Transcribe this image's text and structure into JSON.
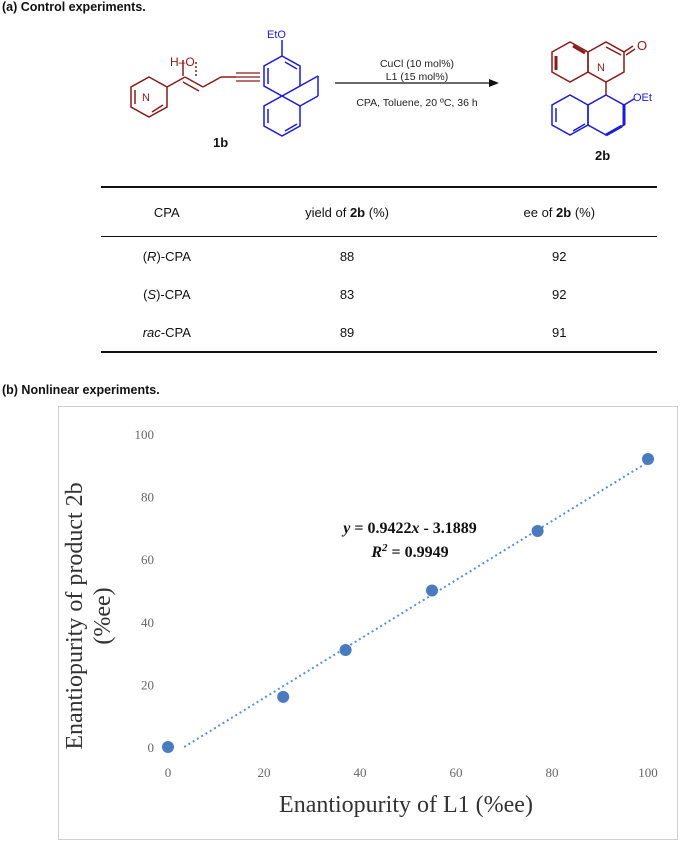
{
  "section_a": {
    "title": "(a) Control experiments.",
    "scheme": {
      "reactant_label": "1b",
      "product_label": "2b",
      "reactant_groups": {
        "hydroxyl": "H–O",
        "ethoxy": "EtO",
        "nitrogen": "N"
      },
      "product_groups": {
        "carbonyl": "O",
        "ethoxy": "OEt",
        "nitrogen": "N"
      },
      "conditions": {
        "line1": "CuCl (10 mol%)",
        "line2": "L1 (15 mol%)",
        "line3": "CPA, Toluene, 20 ºC, 36 h"
      },
      "colors": {
        "red": "#8b1a1a",
        "blue": "#1c1cd6"
      }
    },
    "table": {
      "headers": [
        {
          "pre": "CPA",
          "bold": "",
          "post": ""
        },
        {
          "pre": "yield of ",
          "bold": "2b",
          "post": " (%)"
        },
        {
          "pre": "ee of ",
          "bold": "2b",
          "post": " (%)"
        }
      ],
      "rows": [
        {
          "prefix": "(",
          "italic": "R",
          "suffix": ")-CPA",
          "yield": "88",
          "ee": "92"
        },
        {
          "prefix": "(",
          "italic": "S",
          "suffix": ")-CPA",
          "yield": "83",
          "ee": "92"
        },
        {
          "prefix": "",
          "italic": "rac",
          "suffix": "-CPA",
          "yield": "89",
          "ee": "91"
        }
      ]
    }
  },
  "section_b": {
    "title": "(b) Nonlinear experiments."
  },
  "chart_data": {
    "type": "scatter",
    "xlabel": "Enantiopurity  of L1  (%ee)",
    "ylabel_line1": "Enantiopurity  of product  2b",
    "ylabel_line2": "(%ee)",
    "xlim": [
      0,
      100
    ],
    "ylim": [
      0,
      100
    ],
    "xticks": [
      0,
      20,
      40,
      60,
      80,
      100
    ],
    "yticks": [
      0,
      20,
      40,
      60,
      80,
      100
    ],
    "grid": false,
    "series": [
      {
        "points": [
          {
            "x": 0,
            "y": 0
          },
          {
            "x": 24,
            "y": 16
          },
          {
            "x": 37,
            "y": 31
          },
          {
            "x": 55,
            "y": 50
          },
          {
            "x": 77,
            "y": 69
          },
          {
            "x": 100,
            "y": 92
          }
        ],
        "color": "#4a7bc0"
      }
    ],
    "trendline": {
      "slope": 0.9422,
      "intercept": -3.1889,
      "style": "dotted",
      "color": "#5b8ed6"
    },
    "annotation": {
      "equation": {
        "y": "y",
        "eq": " = 0.9422",
        "x": "x",
        "rest": " - 3.1889"
      },
      "r2": {
        "R": "R",
        "sup": "2",
        "rest": " = 0.9949"
      }
    }
  }
}
